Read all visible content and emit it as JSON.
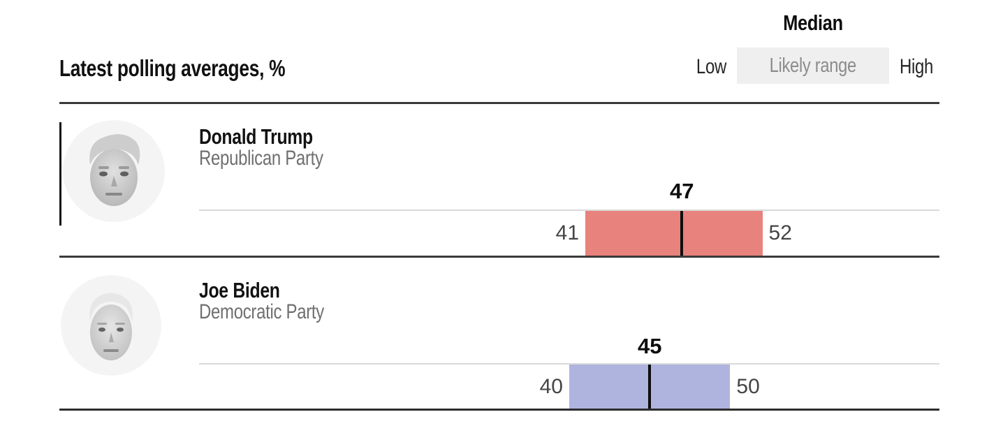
{
  "header": {
    "title": "Latest polling averages, %"
  },
  "legend": {
    "median": "Median",
    "low": "Low",
    "range": "Likely range",
    "high": "High"
  },
  "rows": [
    {
      "name": "Donald Trump",
      "party": "Republican Party",
      "low": 41,
      "median": 47,
      "high": 52,
      "bar_color": "#e8827c"
    },
    {
      "name": "Joe Biden",
      "party": "Democratic Party",
      "low": 40,
      "median": 45,
      "high": 50,
      "bar_color": "#aeb4de"
    }
  ],
  "colors": {
    "republican_band": "#e8827c",
    "democratic_band": "#aeb4de",
    "median_line": "#0e0e0e",
    "legend_box_bg": "#efefef",
    "axis_line": "#d9d9d9",
    "divider": "#3a3a3a",
    "party_text": "#6f6f6f",
    "range_value_text": "#454545"
  },
  "chart_data": {
    "type": "bar",
    "title": "Latest polling averages, %",
    "unit": "%",
    "xlim": [
      17,
      63
    ],
    "grid": false,
    "legend_position": "top-right",
    "legend_entries": [
      "Median",
      "Low",
      "Likely range",
      "High"
    ],
    "series": [
      {
        "name": "Donald Trump",
        "party": "Republican Party",
        "low": 41,
        "median": 47,
        "high": 52,
        "color": "#e8827c"
      },
      {
        "name": "Joe Biden",
        "party": "Democratic Party",
        "low": 40,
        "median": 45,
        "high": 50,
        "color": "#aeb4de"
      }
    ]
  }
}
